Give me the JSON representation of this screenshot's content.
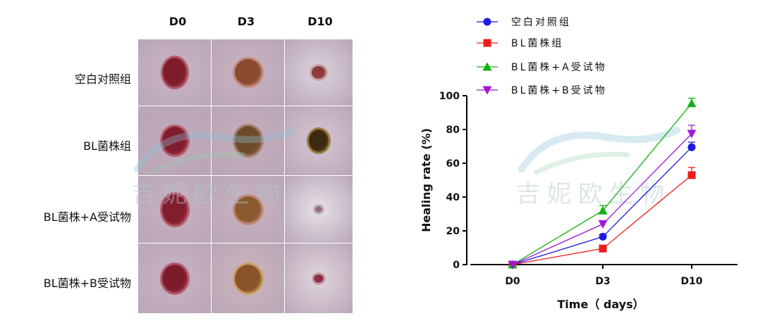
{
  "panel": {
    "days": [
      "D0",
      "D3",
      "D10"
    ],
    "groups": [
      "空白对照组",
      "BL菌株组",
      "BL菌株+A受试物",
      "BL菌株+B受试物"
    ]
  },
  "watermark": {
    "text": "吉妮欧生物",
    "color": "#a9c7cc"
  },
  "chart_data": {
    "type": "line",
    "categories": [
      "D0",
      "D3",
      "D10"
    ],
    "xlabel": "Time（ days）",
    "ylabel": "Healing rate (%)",
    "ylim": [
      0,
      100
    ],
    "yticks": [
      0,
      20,
      40,
      60,
      80,
      100
    ],
    "legend_position": "top",
    "series": [
      {
        "name": "空白对照组",
        "values": [
          0,
          16.5,
          69.5
        ],
        "errors": [
          0,
          1.5,
          3
        ],
        "color": "#1b1be6",
        "marker": "circle"
      },
      {
        "name": "BL菌株组",
        "values": [
          0,
          9.5,
          53
        ],
        "errors": [
          0,
          1,
          4.5
        ],
        "color": "#ee1c1c",
        "marker": "square"
      },
      {
        "name": "BL菌株+A受试物",
        "values": [
          0,
          32,
          95.5
        ],
        "errors": [
          0,
          3,
          3
        ],
        "color": "#13b013",
        "marker": "triangle-up"
      },
      {
        "name": "BL菌株+B受试物",
        "values": [
          0,
          24,
          77.5
        ],
        "errors": [
          0,
          2,
          5
        ],
        "color": "#a018d8",
        "marker": "triangle-down"
      }
    ]
  }
}
